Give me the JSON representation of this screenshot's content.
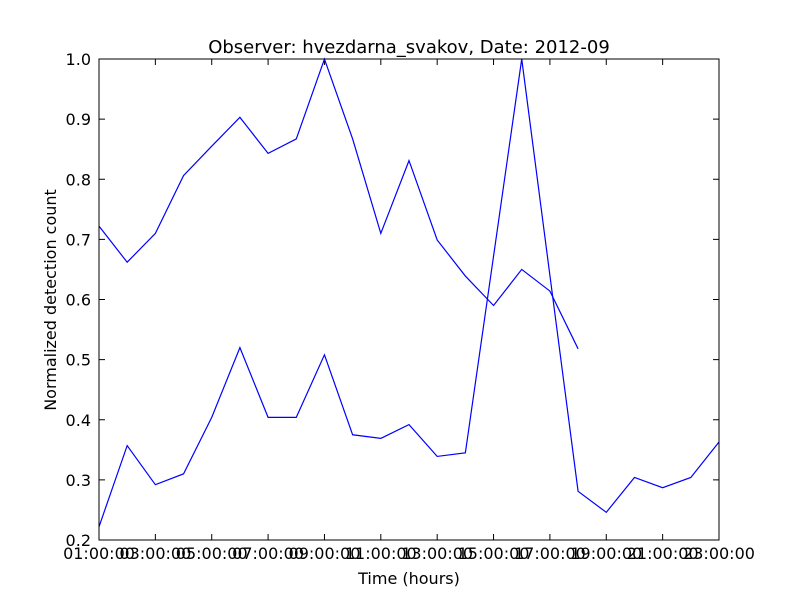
{
  "chart_data": {
    "type": "line",
    "title": "Observer: hvezdarna_svakov, Date: 2012-09",
    "xlabel": "Time (hours)",
    "ylabel": "Normalized detection count",
    "x": [
      1,
      2,
      3,
      4,
      5,
      6,
      7,
      8,
      9,
      10,
      11,
      12,
      13,
      14,
      15,
      16,
      17,
      18,
      19,
      20,
      21,
      22,
      23
    ],
    "series": [
      {
        "color": "#0000ff",
        "values": [
          0.722,
          0.662,
          0.71,
          0.806,
          0.855,
          0.903,
          0.843,
          0.867,
          1.0,
          0.867,
          0.71,
          0.831,
          0.699,
          0.639,
          0.59,
          0.65,
          0.614,
          0.518,
          null,
          null,
          null,
          null,
          null
        ]
      },
      {
        "color": "#0000ff",
        "values": [
          0.222,
          0.357,
          0.292,
          0.31,
          0.404,
          0.52,
          0.404,
          0.404,
          0.508,
          0.375,
          0.369,
          0.392,
          0.339,
          0.345,
          0.672,
          1.0,
          0.64,
          0.281,
          0.246,
          0.304,
          0.287,
          0.304,
          0.363
        ]
      }
    ],
    "xlim": [
      1,
      23
    ],
    "xticks": [
      {
        "value": 1,
        "label": "01:00:00"
      },
      {
        "value": 3,
        "label": "03:00:00"
      },
      {
        "value": 5,
        "label": "05:00:00"
      },
      {
        "value": 7,
        "label": "07:00:00"
      },
      {
        "value": 9,
        "label": "09:00:00"
      },
      {
        "value": 11,
        "label": "11:00:00"
      },
      {
        "value": 13,
        "label": "13:00:00"
      },
      {
        "value": 15,
        "label": "15:00:00"
      },
      {
        "value": 17,
        "label": "17:00:00"
      },
      {
        "value": 19,
        "label": "19:00:00"
      },
      {
        "value": 21,
        "label": "21:00:00"
      },
      {
        "value": 23,
        "label": "23:00:00"
      }
    ],
    "ylim": [
      0.2,
      1.0
    ],
    "yticks": [
      0.2,
      0.3,
      0.4,
      0.5,
      0.6,
      0.7,
      0.8,
      0.9,
      {
        "value": 1.0,
        "label": "1.0"
      }
    ],
    "grid": false
  }
}
